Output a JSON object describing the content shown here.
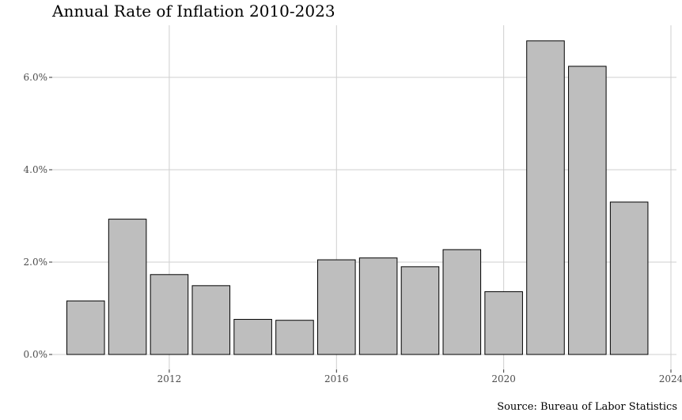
{
  "chart_data": {
    "type": "bar",
    "title": "Annual Rate of Inflation 2010-2023",
    "caption": "Source: Bureau of Labor Statistics",
    "xlabel": "",
    "ylabel": "",
    "x": [
      2010,
      2011,
      2012,
      2013,
      2014,
      2015,
      2016,
      2017,
      2018,
      2019,
      2020,
      2021,
      2022,
      2023
    ],
    "values": [
      1.16,
      2.93,
      1.73,
      1.49,
      0.76,
      0.74,
      2.05,
      2.09,
      1.9,
      2.27,
      1.36,
      6.79,
      6.24,
      3.3
    ],
    "xlim": [
      2009.2,
      2024
    ],
    "ylim": [
      0,
      7.2
    ],
    "x_ticks": [
      2012,
      2016,
      2020,
      2024
    ],
    "x_tick_labels": [
      "2012",
      "2016",
      "2020",
      "2024"
    ],
    "y_ticks": [
      0,
      2,
      4,
      6
    ],
    "y_tick_labels": [
      "0.0%",
      "2.0%",
      "4.0%",
      "6.0%"
    ],
    "grid": true,
    "bar_color": "#bebebe",
    "edge_color": "#000000",
    "grid_color": "#cfcfcf"
  }
}
